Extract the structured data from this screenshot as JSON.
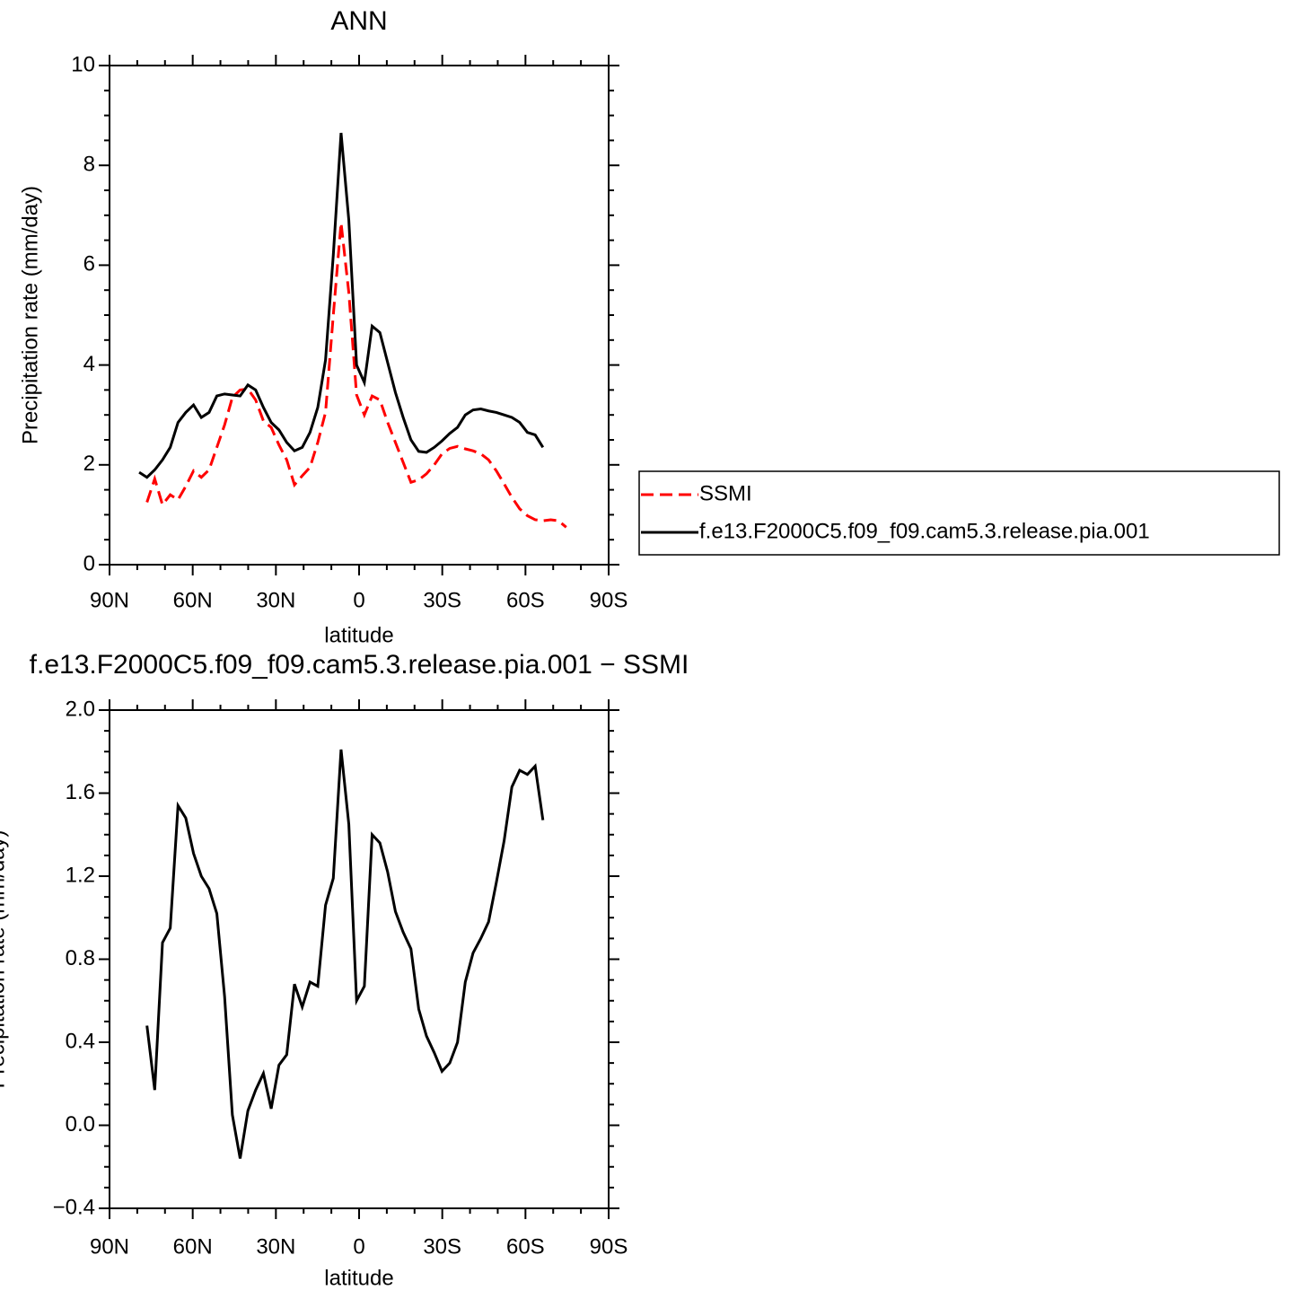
{
  "chart_data": [
    {
      "type": "line",
      "title": "ANN",
      "xlabel": "latitude",
      "ylabel": "Precipitation rate (mm/day)",
      "legend": "right",
      "grid": false,
      "x": [
        79.3,
        76.5,
        73.7,
        70.9,
        68.1,
        65.3,
        62.5,
        59.7,
        56.9,
        54.1,
        51.3,
        48.5,
        45.7,
        42.9,
        40.1,
        37.3,
        34.5,
        31.7,
        28.9,
        26.1,
        23.3,
        20.5,
        17.7,
        14.9,
        12.1,
        9.3,
        6.5,
        3.7,
        0.9,
        -1.9,
        -4.7,
        -7.5,
        -10.3,
        -13.1,
        -15.9,
        -18.7,
        -21.5,
        -24.3,
        -27.1,
        -29.9,
        -32.7,
        -35.5,
        -38.3,
        -41.1,
        -43.9,
        -46.7,
        -49.5,
        -52.3,
        -55.1,
        -57.9,
        -60.7,
        -63.5,
        -66.3,
        -69.1,
        -71.9,
        -74.7
      ],
      "series": [
        {
          "name": "SSMI",
          "color": "#ff0000",
          "linestyle": "dashed",
          "values": [
            null,
            1.25,
            1.72,
            1.2,
            1.4,
            1.3,
            1.57,
            1.88,
            1.75,
            1.9,
            2.35,
            2.8,
            3.35,
            3.5,
            3.52,
            3.3,
            2.88,
            2.75,
            2.4,
            2.1,
            1.6,
            1.78,
            1.95,
            2.45,
            3.05,
            5.0,
            6.85,
            5.45,
            3.4,
            3.0,
            3.38,
            3.3,
            2.85,
            2.45,
            2.05,
            1.65,
            1.7,
            1.82,
            2.0,
            2.22,
            2.33,
            2.37,
            2.32,
            2.28,
            2.22,
            2.1,
            1.88,
            1.62,
            1.35,
            1.12,
            0.98,
            0.9,
            0.88,
            0.9,
            0.88,
            0.75
          ]
        },
        {
          "name": "f.e13.F2000C5.f09_f09.cam5.3.release.pia.001",
          "color": "#000000",
          "linestyle": "solid",
          "values": [
            1.85,
            1.75,
            1.9,
            2.1,
            2.35,
            2.85,
            3.05,
            3.2,
            2.95,
            3.05,
            3.38,
            3.42,
            3.4,
            3.38,
            3.6,
            3.5,
            3.15,
            2.85,
            2.7,
            2.45,
            2.28,
            2.35,
            2.65,
            3.15,
            4.1,
            6.2,
            8.65,
            6.9,
            4.0,
            3.65,
            4.78,
            4.65,
            4.05,
            3.45,
            2.95,
            2.5,
            2.27,
            2.25,
            2.35,
            2.48,
            2.63,
            2.75,
            3.0,
            3.1,
            3.12,
            3.08,
            3.05,
            3.0,
            2.95,
            2.85,
            2.65,
            2.6,
            2.35,
            null,
            null,
            null
          ]
        }
      ],
      "xlim": [
        90,
        -90
      ],
      "xticks": [
        {
          "value": 90,
          "label": "90N"
        },
        {
          "value": 60,
          "label": "60N"
        },
        {
          "value": 30,
          "label": "30N"
        },
        0,
        {
          "value": -30,
          "label": "30S"
        },
        {
          "value": -60,
          "label": "60S"
        },
        {
          "value": -90,
          "label": "90S"
        }
      ],
      "xminorticks": [
        80,
        70,
        50,
        40,
        20,
        10,
        -10,
        -20,
        -40,
        -50,
        -70,
        -80
      ],
      "ylim": [
        0,
        10
      ],
      "yticks": [
        0,
        2,
        4,
        6,
        8,
        10
      ],
      "yminorticks": [
        0.5,
        1,
        1.5,
        2.5,
        3,
        3.5,
        4.5,
        5,
        5.5,
        6.5,
        7,
        7.5,
        8.5,
        9,
        9.5
      ]
    },
    {
      "type": "line",
      "title": "f.e13.F2000C5.f09_f09.cam5.3.release.pia.001 − SSMI",
      "xlabel": "latitude",
      "ylabel": "Precipitation rate (mm/day)",
      "grid": false,
      "x": [
        79.3,
        76.5,
        73.7,
        70.9,
        68.1,
        65.3,
        62.5,
        59.7,
        56.9,
        54.1,
        51.3,
        48.5,
        45.7,
        42.9,
        40.1,
        37.3,
        34.5,
        31.7,
        28.9,
        26.1,
        23.3,
        20.5,
        17.7,
        14.9,
        12.1,
        9.3,
        6.5,
        3.7,
        0.9,
        -1.9,
        -4.7,
        -7.5,
        -10.3,
        -13.1,
        -15.9,
        -18.7,
        -21.5,
        -24.3,
        -27.1,
        -29.9,
        -32.7,
        -35.5,
        -38.3,
        -41.1,
        -43.9,
        -46.7,
        -49.5,
        -52.3,
        -55.1,
        -57.9,
        -60.7,
        -63.5,
        -66.3,
        -69.1,
        -71.9,
        -74.7
      ],
      "series": [
        {
          "color": "#000000",
          "linestyle": "solid",
          "values": [
            null,
            0.48,
            0.17,
            0.88,
            0.95,
            1.54,
            1.48,
            1.31,
            1.2,
            1.14,
            1.02,
            0.62,
            0.05,
            -0.16,
            0.07,
            0.17,
            0.25,
            0.08,
            0.29,
            0.34,
            0.68,
            0.57,
            0.69,
            0.67,
            1.06,
            1.19,
            1.81,
            1.45,
            0.6,
            0.67,
            1.4,
            1.36,
            1.22,
            1.03,
            0.93,
            0.85,
            0.56,
            0.43,
            0.35,
            0.26,
            0.3,
            0.4,
            0.69,
            0.83,
            0.9,
            0.98,
            1.17,
            1.37,
            1.63,
            1.71,
            1.69,
            1.73,
            1.47,
            null,
            null,
            null
          ]
        }
      ],
      "xlim": [
        90,
        -90
      ],
      "xticks": [
        {
          "value": 90,
          "label": "90N"
        },
        {
          "value": 60,
          "label": "60N"
        },
        {
          "value": 30,
          "label": "30N"
        },
        0,
        {
          "value": -30,
          "label": "30S"
        },
        {
          "value": -60,
          "label": "60S"
        },
        {
          "value": -90,
          "label": "90S"
        }
      ],
      "xminorticks": [
        80,
        70,
        50,
        40,
        20,
        10,
        -10,
        -20,
        -40,
        -50,
        -70,
        -80
      ],
      "ylim": [
        -0.4,
        2.0
      ],
      "yticks": [
        {
          "value": -0.4,
          "label": "−0.4"
        },
        {
          "value": 0,
          "label": "0.0"
        },
        0.4,
        0.8,
        1.2,
        1.6,
        {
          "value": 2.0,
          "label": "2.0"
        }
      ],
      "yminorticks": [
        -0.3,
        -0.2,
        -0.1,
        0.1,
        0.2,
        0.3,
        0.5,
        0.6,
        0.7,
        0.9,
        1.0,
        1.1,
        1.3,
        1.4,
        1.5,
        1.7,
        1.8,
        1.9
      ]
    }
  ]
}
